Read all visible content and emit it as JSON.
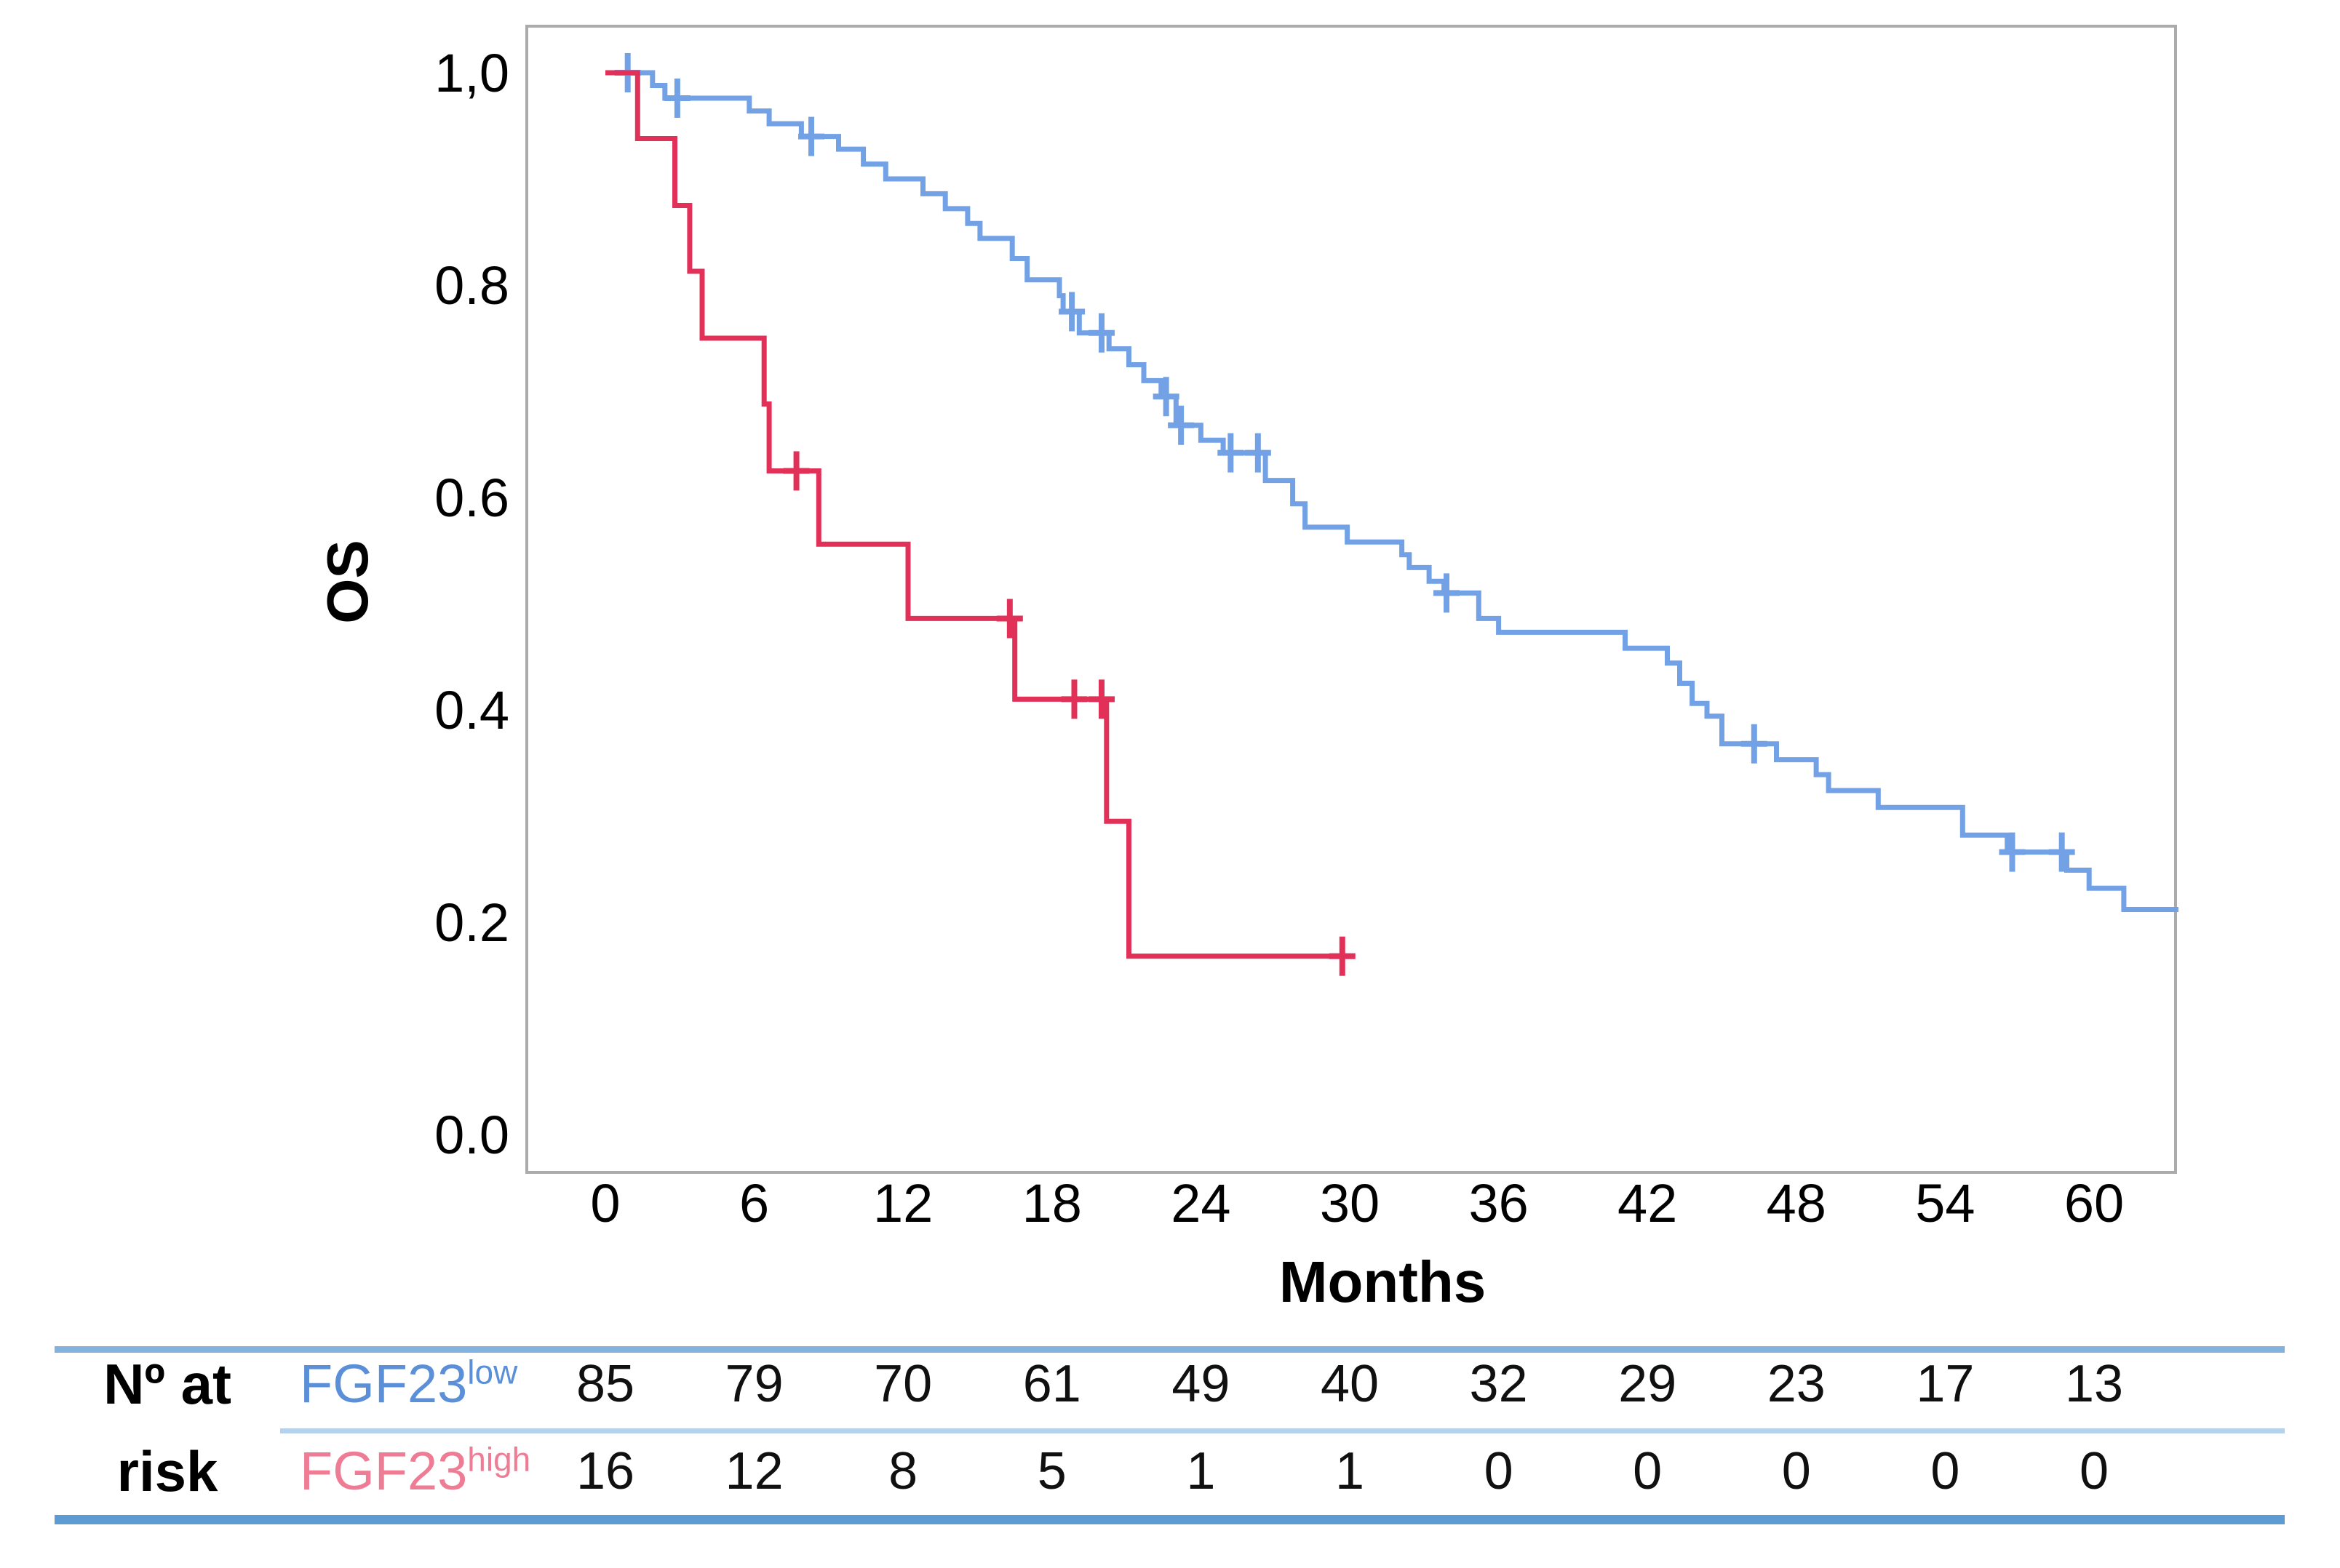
{
  "chart_data": {
    "type": "line",
    "subtype": "kaplan-meier-step",
    "title": "",
    "xlabel": "Months",
    "ylabel": "OS",
    "xlim": [
      0,
      64
    ],
    "ylim": [
      0.0,
      1.0
    ],
    "grid": false,
    "x_axis": {
      "label": "Months",
      "ticks": [
        0,
        6,
        12,
        18,
        24,
        30,
        36,
        42,
        48,
        54,
        60
      ]
    },
    "y_axis": {
      "label": "OS",
      "ticks": [
        {
          "label": "1,0",
          "value": 1.0
        },
        {
          "label": "0.8",
          "value": 0.8
        },
        {
          "label": "0.6",
          "value": 0.6
        },
        {
          "label": "0.4",
          "value": 0.4
        },
        {
          "label": "0.2",
          "value": 0.2
        },
        {
          "label": "0.0",
          "value": 0.0
        }
      ]
    },
    "series": [
      {
        "name": "FGF23low",
        "label_base": "FGF23",
        "label_sup": "low",
        "color": "#73a1e6",
        "steps": [
          [
            0,
            1.0
          ],
          [
            1.9,
            0.988
          ],
          [
            2.4,
            0.976
          ],
          [
            5.8,
            0.964
          ],
          [
            6.6,
            0.952
          ],
          [
            7.9,
            0.94
          ],
          [
            9.4,
            0.928
          ],
          [
            10.4,
            0.914
          ],
          [
            11.3,
            0.9
          ],
          [
            12.8,
            0.886
          ],
          [
            13.7,
            0.872
          ],
          [
            14.6,
            0.858
          ],
          [
            15.1,
            0.844
          ],
          [
            16.4,
            0.825
          ],
          [
            17.0,
            0.805
          ],
          [
            18.3,
            0.79
          ],
          [
            18.45,
            0.775
          ],
          [
            19.1,
            0.755
          ],
          [
            20.3,
            0.74
          ],
          [
            21.1,
            0.725
          ],
          [
            21.7,
            0.71
          ],
          [
            22.4,
            0.695
          ],
          [
            23.0,
            0.668
          ],
          [
            24.0,
            0.654
          ],
          [
            24.9,
            0.642
          ],
          [
            26.6,
            0.616
          ],
          [
            27.7,
            0.594
          ],
          [
            28.2,
            0.572
          ],
          [
            29.9,
            0.558
          ],
          [
            32.1,
            0.546
          ],
          [
            32.4,
            0.534
          ],
          [
            33.2,
            0.521
          ],
          [
            33.8,
            0.51
          ],
          [
            35.2,
            0.486
          ],
          [
            36.0,
            0.473
          ],
          [
            41.1,
            0.458
          ],
          [
            42.8,
            0.444
          ],
          [
            43.3,
            0.425
          ],
          [
            43.8,
            0.406
          ],
          [
            44.4,
            0.394
          ],
          [
            45.0,
            0.368
          ],
          [
            47.2,
            0.353
          ],
          [
            48.8,
            0.339
          ],
          [
            49.3,
            0.324
          ],
          [
            51.3,
            0.308
          ],
          [
            54.7,
            0.282
          ],
          [
            56.5,
            0.266
          ],
          [
            58.9,
            0.249
          ],
          [
            59.8,
            0.232
          ],
          [
            61.2,
            0.212
          ],
          [
            63.4,
            0.212
          ]
        ],
        "censors": [
          [
            0.9,
            1.0
          ],
          [
            2.9,
            0.976
          ],
          [
            8.3,
            0.94
          ],
          [
            18.8,
            0.775
          ],
          [
            20.0,
            0.755
          ],
          [
            22.6,
            0.695
          ],
          [
            23.2,
            0.668
          ],
          [
            25.2,
            0.642
          ],
          [
            26.3,
            0.642
          ],
          [
            33.9,
            0.51
          ],
          [
            46.3,
            0.368
          ],
          [
            56.7,
            0.266
          ],
          [
            58.7,
            0.266
          ]
        ]
      },
      {
        "name": "FGF23high",
        "label_base": "FGF23",
        "label_sup": "high",
        "color": "#e23158",
        "steps": [
          [
            0,
            1.0
          ],
          [
            1.3,
            0.938
          ],
          [
            2.8,
            0.875
          ],
          [
            3.4,
            0.813
          ],
          [
            3.9,
            0.75
          ],
          [
            6.4,
            0.688
          ],
          [
            6.6,
            0.625
          ],
          [
            8.6,
            0.556
          ],
          [
            12.2,
            0.486
          ],
          [
            16.5,
            0.41
          ],
          [
            20.2,
            0.295
          ],
          [
            21.1,
            0.168
          ],
          [
            30.1,
            0.168
          ]
        ],
        "censors": [
          [
            7.7,
            0.625
          ],
          [
            16.3,
            0.486
          ],
          [
            18.9,
            0.41
          ],
          [
            20.0,
            0.41
          ],
          [
            29.7,
            0.168
          ]
        ]
      }
    ],
    "at_risk_table": {
      "row_header": [
        "Nº at",
        "risk"
      ],
      "time_points": [
        0,
        6,
        12,
        18,
        24,
        30,
        36,
        42,
        48,
        54,
        60
      ],
      "rows": [
        {
          "label_base": "FGF23",
          "label_sup": "low",
          "text_color": "#5b90d8",
          "counts": [
            85,
            79,
            70,
            61,
            49,
            40,
            32,
            29,
            23,
            17,
            13
          ]
        },
        {
          "label_base": "FGF23",
          "label_sup": "high",
          "text_color": "#ee7c95",
          "counts": [
            16,
            12,
            8,
            5,
            1,
            1,
            0,
            0,
            0,
            0,
            0
          ]
        }
      ]
    },
    "colors": {
      "low_curve": "#73a1e6",
      "high_curve": "#e23158",
      "low_label": "#5b90d8",
      "high_label": "#ee7c95",
      "frame": "#ababab",
      "rule_top": "#82b3e0",
      "rule_mid": "#b5d1ec",
      "rule_bottom": "#5d9bd3"
    }
  }
}
